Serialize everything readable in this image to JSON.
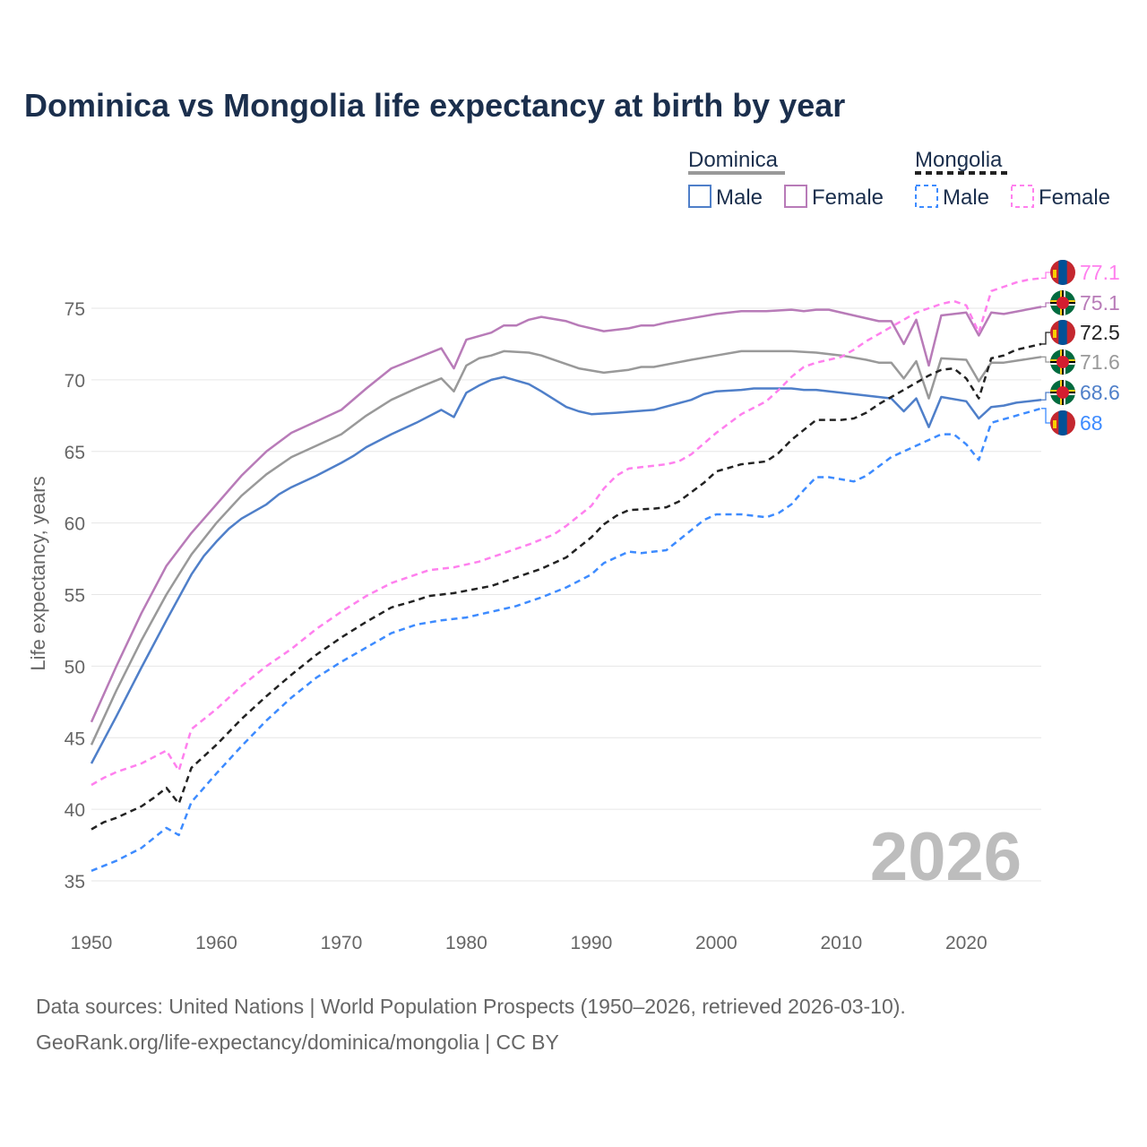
{
  "chart_data": {
    "type": "line",
    "title": "Dominica vs Mongolia life expectancy at birth by year",
    "xlabel": "",
    "ylabel": "Life expectancy, years",
    "xlim": [
      1950,
      2026
    ],
    "ylim": [
      33,
      79
    ],
    "x_ticks": [
      1950,
      1960,
      1970,
      1980,
      1990,
      2000,
      2010,
      2020
    ],
    "y_ticks": [
      35,
      40,
      45,
      50,
      55,
      60,
      65,
      70,
      75
    ],
    "grid": true,
    "year_watermark": "2026",
    "legend": {
      "placement": "top-right",
      "groups": [
        {
          "name": "Dominica",
          "items": [
            "Male",
            "Female"
          ]
        },
        {
          "name": "Mongolia",
          "items": [
            "Male",
            "Female"
          ]
        }
      ]
    },
    "series": [
      {
        "name": "Dominica Female",
        "color": "#b87bb8",
        "dash": false,
        "end_label": "75.1",
        "flag": "dominica",
        "x": [
          1950,
          1952,
          1954,
          1956,
          1958,
          1960,
          1962,
          1964,
          1966,
          1968,
          1970,
          1972,
          1974,
          1976,
          1978,
          1979,
          1980,
          1982,
          1983,
          1984,
          1985,
          1986,
          1988,
          1989,
          1991,
          1993,
          1994,
          1995,
          1996,
          1998,
          2000,
          2002,
          2004,
          2006,
          2007,
          2008,
          2009,
          2011,
          2013,
          2014,
          2015,
          2016,
          2017,
          2018,
          2020,
          2021,
          2022,
          2023,
          2026
        ],
        "y": [
          46.1,
          50,
          53.7,
          57,
          59.3,
          61.3,
          63.3,
          65,
          66.3,
          67.1,
          67.9,
          69.4,
          70.8,
          71.5,
          72.2,
          70.8,
          72.8,
          73.3,
          73.8,
          73.8,
          74.2,
          74.4,
          74.1,
          73.8,
          73.4,
          73.6,
          73.8,
          73.8,
          74,
          74.3,
          74.6,
          74.8,
          74.8,
          74.9,
          74.8,
          74.9,
          74.9,
          74.5,
          74.1,
          74.1,
          72.5,
          74.2,
          71.0,
          74.5,
          74.7,
          73.1,
          74.7,
          74.6,
          75.1
        ]
      },
      {
        "name": "Dominica",
        "color": "#999999",
        "dash": false,
        "end_label": "71.6",
        "flag": "dominica",
        "x": [
          1950,
          1952,
          1954,
          1956,
          1958,
          1960,
          1962,
          1964,
          1966,
          1968,
          1970,
          1972,
          1974,
          1976,
          1978,
          1979,
          1980,
          1981,
          1982,
          1983,
          1985,
          1986,
          1988,
          1989,
          1991,
          1993,
          1994,
          1995,
          1998,
          2000,
          2002,
          2004,
          2006,
          2008,
          2010,
          2012,
          2013,
          2014,
          2015,
          2016,
          2017,
          2018,
          2020,
          2021,
          2022,
          2023,
          2026
        ],
        "y": [
          44.5,
          48.3,
          51.8,
          55,
          57.8,
          60,
          61.9,
          63.4,
          64.6,
          65.4,
          66.2,
          67.5,
          68.6,
          69.4,
          70.1,
          69.2,
          71,
          71.5,
          71.7,
          72,
          71.9,
          71.7,
          71.1,
          70.8,
          70.5,
          70.7,
          70.9,
          70.9,
          71.4,
          71.7,
          72,
          72,
          72,
          71.9,
          71.7,
          71.4,
          71.2,
          71.2,
          70.1,
          71.3,
          68.7,
          71.5,
          71.4,
          69.9,
          71.2,
          71.2,
          71.6
        ]
      },
      {
        "name": "Dominica Male",
        "color": "#4f7fc9",
        "dash": false,
        "end_label": "68.6",
        "flag": "dominica",
        "x": [
          1950,
          1952,
          1954,
          1956,
          1958,
          1959,
          1960,
          1961,
          1962,
          1964,
          1965,
          1966,
          1968,
          1970,
          1971,
          1972,
          1974,
          1976,
          1978,
          1979,
          1980,
          1981,
          1982,
          1983,
          1985,
          1986,
          1988,
          1989,
          1990,
          1992,
          1995,
          1998,
          1999,
          2000,
          2002,
          2003,
          2006,
          2007,
          2008,
          2010,
          2014,
          2015,
          2016,
          2017,
          2018,
          2020,
          2021,
          2022,
          2023,
          2024,
          2026
        ],
        "y": [
          43.2,
          46.5,
          49.9,
          53.2,
          56.4,
          57.7,
          58.7,
          59.6,
          60.3,
          61.3,
          62,
          62.5,
          63.3,
          64.2,
          64.7,
          65.3,
          66.2,
          67,
          67.9,
          67.4,
          69.1,
          69.6,
          70,
          70.2,
          69.7,
          69.2,
          68.1,
          67.8,
          67.6,
          67.7,
          67.9,
          68.6,
          69,
          69.2,
          69.3,
          69.4,
          69.4,
          69.3,
          69.3,
          69.1,
          68.7,
          67.8,
          68.7,
          66.7,
          68.8,
          68.5,
          67.3,
          68.1,
          68.2,
          68.4,
          68.6
        ]
      },
      {
        "name": "Mongolia Female",
        "color": "#ff80ee",
        "dash": true,
        "end_label": "77.1",
        "flag": "mongolia",
        "x": [
          1950,
          1951,
          1952,
          1954,
          1956,
          1957,
          1958,
          1960,
          1962,
          1964,
          1966,
          1968,
          1970,
          1972,
          1974,
          1976,
          1977,
          1979,
          1981,
          1983,
          1985,
          1987,
          1988,
          1990,
          1991,
          1992,
          1993,
          1995,
          1996,
          1997,
          1998,
          2000,
          2002,
          2004,
          2005,
          2006,
          2007,
          2008,
          2010,
          2011,
          2012,
          2013,
          2014,
          2015,
          2016,
          2017,
          2018,
          2019,
          2020,
          2021,
          2022,
          2023,
          2024,
          2025,
          2026
        ],
        "y": [
          41.7,
          42.2,
          42.6,
          43.2,
          44.1,
          42.7,
          45.6,
          47,
          48.6,
          50,
          51.2,
          52.6,
          53.8,
          54.9,
          55.8,
          56.4,
          56.7,
          56.9,
          57.3,
          57.9,
          58.5,
          59.2,
          59.8,
          61.2,
          62.4,
          63.3,
          63.8,
          64,
          64.1,
          64.3,
          64.8,
          66.3,
          67.6,
          68.5,
          69.3,
          70.2,
          70.9,
          71.2,
          71.6,
          72.1,
          72.7,
          73.2,
          73.7,
          74.2,
          74.7,
          75,
          75.3,
          75.5,
          75.2,
          73.3,
          76.2,
          76.5,
          76.8,
          77,
          77.1
        ]
      },
      {
        "name": "Mongolia",
        "color": "#222222",
        "dash": true,
        "end_label": "72.5",
        "flag": "mongolia",
        "x": [
          1950,
          1951,
          1952,
          1954,
          1955,
          1956,
          1957,
          1958,
          1960,
          1962,
          1964,
          1966,
          1968,
          1970,
          1972,
          1974,
          1976,
          1977,
          1979,
          1982,
          1984,
          1986,
          1988,
          1990,
          1991,
          1992,
          1993,
          1995,
          1996,
          1997,
          1999,
          2000,
          2002,
          2004,
          2005,
          2006,
          2007,
          2008,
          2010,
          2011,
          2012,
          2013,
          2015,
          2016,
          2017,
          2018,
          2019,
          2020,
          2021,
          2022,
          2023,
          2024,
          2025,
          2026
        ],
        "y": [
          38.6,
          39.1,
          39.4,
          40.2,
          40.8,
          41.5,
          40.4,
          42.9,
          44.5,
          46.3,
          47.9,
          49.4,
          50.8,
          52,
          53.1,
          54.1,
          54.6,
          54.9,
          55.1,
          55.6,
          56.2,
          56.8,
          57.6,
          59,
          59.9,
          60.5,
          60.9,
          61,
          61.1,
          61.5,
          62.8,
          63.6,
          64.1,
          64.3,
          64.9,
          65.8,
          66.5,
          67.2,
          67.2,
          67.3,
          67.7,
          68.3,
          69.3,
          69.8,
          70.3,
          70.7,
          70.8,
          70.1,
          68.7,
          71.5,
          71.7,
          72.1,
          72.3,
          72.5
        ]
      },
      {
        "name": "Mongolia Male",
        "color": "#3d8bff",
        "dash": true,
        "end_label": "68",
        "flag": "mongolia",
        "x": [
          1950,
          1952,
          1954,
          1956,
          1957,
          1958,
          1960,
          1962,
          1964,
          1966,
          1968,
          1970,
          1972,
          1974,
          1976,
          1978,
          1980,
          1982,
          1984,
          1986,
          1988,
          1990,
          1991,
          1993,
          1994,
          1996,
          1997,
          1999,
          2000,
          2002,
          2003,
          2004,
          2005,
          2006,
          2007,
          2008,
          2009,
          2011,
          2012,
          2014,
          2016,
          2018,
          2019,
          2020,
          2021,
          2022,
          2024,
          2026
        ],
        "y": [
          35.7,
          36.4,
          37.3,
          38.7,
          38.2,
          40.5,
          42.5,
          44.4,
          46.2,
          47.8,
          49.2,
          50.3,
          51.3,
          52.3,
          52.9,
          53.2,
          53.4,
          53.8,
          54.2,
          54.8,
          55.5,
          56.4,
          57.2,
          58,
          57.9,
          58.1,
          58.8,
          60.2,
          60.6,
          60.6,
          60.5,
          60.4,
          60.7,
          61.3,
          62.3,
          63.2,
          63.2,
          62.9,
          63.3,
          64.6,
          65.4,
          66.2,
          66.2,
          65.5,
          64.4,
          67,
          67.5,
          68
        ]
      }
    ]
  },
  "source": {
    "line1": "Data sources: United Nations | World Population Prospects (1950–2026, retrieved 2026-03-10).",
    "line2": "GeoRank.org/life-expectancy/dominica/mongolia | CC BY"
  }
}
